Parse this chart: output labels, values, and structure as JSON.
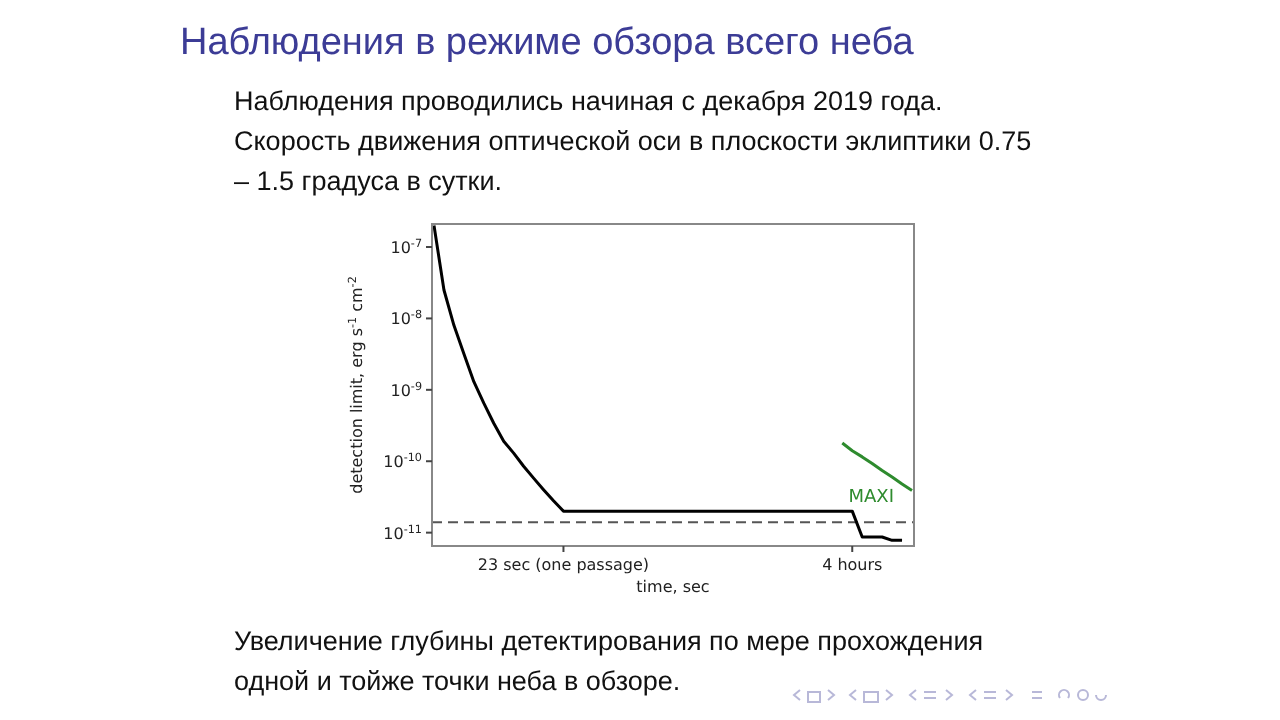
{
  "chart_data": {
    "type": "line",
    "title": "Наблюдения в режиме обзора всего неба",
    "xlabel": "time, sec",
    "ylabel": "detection limit, erg s$^{-1}$ cm$^{-2}$",
    "log": "y",
    "categories": [
      null,
      null,
      null,
      null,
      null,
      null,
      null,
      null,
      null,
      null,
      null,
      null,
      null,
      "23 sec (one passage)",
      null,
      null,
      null,
      null,
      null,
      null,
      null,
      null,
      null,
      null,
      null,
      null,
      null,
      null,
      null,
      null,
      null,
      null,
      null,
      null,
      null,
      null,
      null,
      null,
      null,
      null,
      null,
      null,
      "4 hours",
      null,
      null,
      null,
      null,
      null,
      null
    ],
    "ylim": [
      6.5e-12,
      2.1e-07
    ],
    "yticks": [
      {
        "value": 1e-11,
        "label": "10$^{-11}$"
      },
      {
        "value": 1e-10,
        "label": "10$^{-10}$"
      },
      {
        "value": 1e-09,
        "label": "10$^{-9}$"
      },
      {
        "value": 1e-08,
        "label": "10$^{-8}$"
      },
      {
        "value": 1e-07,
        "label": "10$^{-7}$"
      }
    ],
    "grid": false,
    "legend": false,
    "marker": "none",
    "line_style": "solid",
    "series": [
      {
        "color": "#000000",
        "values": [
          2e-07,
          2.5e-08,
          8e-09,
          3.2e-09,
          1.3e-09,
          6.5e-10,
          3.4e-10,
          1.9e-10,
          1.3e-10,
          8.5e-11,
          5.8e-11,
          4e-11,
          2.8e-11,
          2e-11,
          2e-11,
          2e-11,
          2e-11,
          2e-11,
          2e-11,
          2e-11,
          2e-11,
          2e-11,
          2e-11,
          2e-11,
          2e-11,
          2e-11,
          2e-11,
          2e-11,
          2e-11,
          2e-11,
          2e-11,
          2e-11,
          2e-11,
          2e-11,
          2e-11,
          2e-11,
          2e-11,
          2e-11,
          2e-11,
          2e-11,
          2e-11,
          2e-11,
          2e-11,
          8.7e-12,
          8.7e-12,
          8.7e-12,
          7.8e-12,
          7.8e-12,
          null
        ]
      },
      {
        "name": "MAXI",
        "color": "#2e8b2e",
        "values": [
          null,
          null,
          null,
          null,
          null,
          null,
          null,
          null,
          null,
          null,
          null,
          null,
          null,
          null,
          null,
          null,
          null,
          null,
          null,
          null,
          null,
          null,
          null,
          null,
          null,
          null,
          null,
          null,
          null,
          null,
          null,
          null,
          null,
          null,
          null,
          null,
          null,
          null,
          null,
          null,
          null,
          1.8e-10,
          1.4e-10,
          1.15e-10,
          9.3e-11,
          7.4e-11,
          6e-11,
          4.8e-11,
          3.9e-11
        ]
      }
    ],
    "ref_lines": [
      {
        "axis": "y",
        "value": 1.4e-11,
        "line_style": "dashed",
        "color": "#555555"
      }
    ],
    "annotations": [
      "Наблюдения проводились начиная с декабря 2019 года.",
      "Скорость движения оптической оси в плоскости эклиптики 0.75 – 1.5 градуса в сутки.",
      "Увеличение глубины детектирования по мере прохождения одной и тойже точки неба в обзоре."
    ]
  }
}
